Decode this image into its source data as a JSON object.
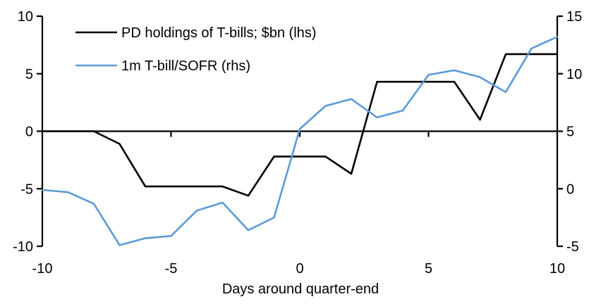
{
  "chart_data": {
    "type": "line",
    "title": "",
    "xlabel": "Days around quarter-end",
    "ylabel_left": "",
    "ylabel_right": "",
    "grid": false,
    "legend_position": "top-left",
    "x_range": [
      -10,
      10
    ],
    "x_ticks": [
      -10,
      -5,
      0,
      5,
      10
    ],
    "x_tick_marks_on_zero_line": [
      -5,
      0,
      5
    ],
    "x": [
      -10,
      -9,
      -8,
      -7,
      -6,
      -5,
      -4,
      -3,
      -2,
      -1,
      0,
      1,
      2,
      3,
      4,
      5,
      6,
      7,
      8,
      9,
      10
    ],
    "axes": {
      "left": {
        "range": [
          -10,
          10
        ],
        "ticks": [
          10,
          5,
          0,
          -5,
          -10
        ]
      },
      "right": {
        "range": [
          -5,
          15
        ],
        "ticks": [
          15,
          10,
          5,
          0,
          -5
        ]
      }
    },
    "series": [
      {
        "name": "PD holdings of T-bills; $bn (lhs)",
        "axis": "left",
        "color": "#000000",
        "values": [
          0,
          0,
          0,
          -1.1,
          -4.8,
          -4.8,
          -4.8,
          -4.8,
          -5.6,
          -2.2,
          -2.2,
          -2.2,
          -3.7,
          4.3,
          4.3,
          4.3,
          4.3,
          1.0,
          6.7,
          6.7,
          6.7
        ]
      },
      {
        "name": "1m T-bill/SOFR (rhs)",
        "axis": "right",
        "color": "#5B9BD5",
        "values": [
          -0.1,
          -0.3,
          -1.3,
          -4.9,
          -4.3,
          -4.1,
          -1.9,
          -1.2,
          -3.6,
          -2.5,
          5.2,
          7.2,
          7.8,
          6.2,
          6.8,
          9.9,
          10.3,
          9.7,
          8.4,
          12.2,
          13.2
        ]
      }
    ]
  },
  "colors": {
    "background": "#FFFFFF",
    "axis": "#000000",
    "text": "#000000",
    "series_pd": "#000000",
    "series_sofr": "#5B9BD5"
  }
}
